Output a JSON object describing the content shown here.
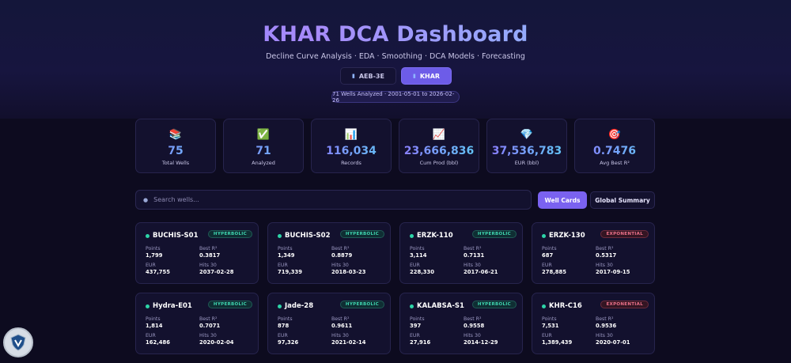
{
  "header": {
    "title": "KHAR DCA Dashboard",
    "subtitle": "Decline Curve Analysis · EDA · Smoothing · DCA Models · Forecasting",
    "toggle": [
      {
        "label": "AEB-3E",
        "active": false
      },
      {
        "label": "KHAR",
        "active": true
      }
    ],
    "range_badge": "71 Wells Analyzed · 2001-05-01 to 2026-02-26"
  },
  "stats": [
    {
      "icon": "📚",
      "icon_name": "books-icon",
      "value": "75",
      "label": "Total Wells"
    },
    {
      "icon": "✅",
      "icon_name": "checkmark-icon",
      "value": "71",
      "label": "Analyzed"
    },
    {
      "icon": "📊",
      "icon_name": "bar-chart-icon",
      "value": "116,034",
      "label": "Records"
    },
    {
      "icon": "📈",
      "icon_name": "trend-chart-icon",
      "value": "23,666,836",
      "label": "Cum Prod (bbl)"
    },
    {
      "icon": "💎",
      "icon_name": "diamond-icon",
      "value": "37,536,783",
      "label": "EUR (bbl)"
    },
    {
      "icon": "🎯",
      "icon_name": "target-icon",
      "value": "0.7476",
      "label": "Avg Best R²"
    }
  ],
  "search": {
    "placeholder": "Search wells..."
  },
  "views": {
    "cards": "Well Cards",
    "global": "Global Summary"
  },
  "field_labels": {
    "points": "Points",
    "best_r2": "Best R²",
    "eur": "EUR",
    "hits": "Hits 30"
  },
  "wells": [
    {
      "name": "BUCHIS-S01",
      "model": "HYPERBOLIC",
      "points": "1,799",
      "best_r2": "0.3817",
      "eur": "437,755",
      "hits": "2037-02-28"
    },
    {
      "name": "BUCHIS-S02",
      "model": "HYPERBOLIC",
      "points": "1,349",
      "best_r2": "0.8879",
      "eur": "719,339",
      "hits": "2018-03-23"
    },
    {
      "name": "ERZK-110",
      "model": "HYPERBOLIC",
      "points": "3,114",
      "best_r2": "0.7131",
      "eur": "228,330",
      "hits": "2017-06-21"
    },
    {
      "name": "ERZK-130",
      "model": "EXPONENTIAL",
      "points": "687",
      "best_r2": "0.5317",
      "eur": "278,885",
      "hits": "2017-09-15"
    },
    {
      "name": "Hydra-E01",
      "model": "HYPERBOLIC",
      "points": "1,814",
      "best_r2": "0.7071",
      "eur": "162,486",
      "hits": "2020-02-04"
    },
    {
      "name": "Jade-28",
      "model": "HYPERBOLIC",
      "points": "878",
      "best_r2": "0.9611",
      "eur": "97,326",
      "hits": "2021-02-14"
    },
    {
      "name": "KALABSA-S1",
      "model": "HYPERBOLIC",
      "points": "397",
      "best_r2": "0.9558",
      "eur": "27,916",
      "hits": "2014-12-29"
    },
    {
      "name": "KHR-C16",
      "model": "EXPONENTIAL",
      "points": "7,531",
      "best_r2": "0.9536",
      "eur": "1,389,439",
      "hits": "2020-07-01"
    }
  ]
}
